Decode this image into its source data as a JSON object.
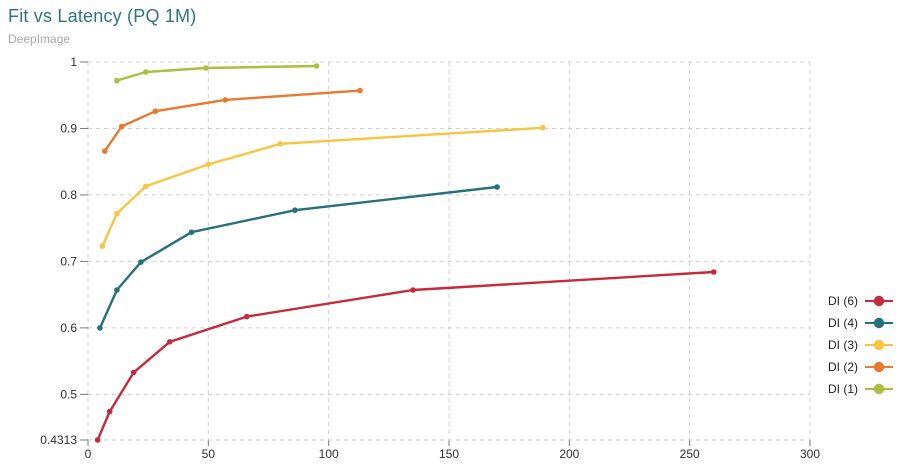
{
  "chart_data": {
    "type": "line",
    "title": "Fit vs Latency (PQ 1M)",
    "subtitle": "DeepImage",
    "xlabel": "",
    "ylabel": "",
    "xlim": [
      0,
      300
    ],
    "ylim": [
      0.4313,
      1.0
    ],
    "grid": "dashed",
    "legend_position": "right",
    "x_ticks": [
      {
        "value": 0,
        "label": "0"
      },
      {
        "value": 50,
        "label": "50"
      },
      {
        "value": 100,
        "label": "100"
      },
      {
        "value": 150,
        "label": "150"
      },
      {
        "value": 200,
        "label": "200"
      },
      {
        "value": 250,
        "label": "250"
      },
      {
        "value": 300,
        "label": "300"
      }
    ],
    "y_ticks": [
      {
        "value": 1.0,
        "label": "1"
      },
      {
        "value": 0.9,
        "label": "0.9"
      },
      {
        "value": 0.8,
        "label": "0.8"
      },
      {
        "value": 0.7,
        "label": "0.7"
      },
      {
        "value": 0.6,
        "label": "0.6"
      },
      {
        "value": 0.5,
        "label": "0.5"
      },
      {
        "value": 0.4313,
        "label": "0.4313"
      }
    ],
    "series": [
      {
        "name": "DI (6)",
        "color": "#c72a39",
        "points": [
          [
            4,
            0.4313
          ],
          [
            9,
            0.474
          ],
          [
            19,
            0.533
          ],
          [
            34,
            0.579
          ],
          [
            66,
            0.617
          ],
          [
            135,
            0.657
          ],
          [
            260,
            0.684
          ]
        ]
      },
      {
        "name": "DI (4)",
        "color": "#266f7c",
        "points": [
          [
            5,
            0.6
          ],
          [
            12,
            0.657
          ],
          [
            22,
            0.699
          ],
          [
            43,
            0.744
          ],
          [
            86,
            0.777
          ],
          [
            170,
            0.812
          ]
        ]
      },
      {
        "name": "DI (3)",
        "color": "#f9c440",
        "points": [
          [
            6,
            0.723
          ],
          [
            12,
            0.772
          ],
          [
            24,
            0.813
          ],
          [
            50,
            0.846
          ],
          [
            80,
            0.877
          ],
          [
            189,
            0.901
          ]
        ]
      },
      {
        "name": "DI (2)",
        "color": "#e8792e",
        "points": [
          [
            7,
            0.866
          ],
          [
            14,
            0.903
          ],
          [
            28,
            0.926
          ],
          [
            57,
            0.943
          ],
          [
            113,
            0.957
          ]
        ]
      },
      {
        "name": "DI (1)",
        "color": "#a9bf3e",
        "points": [
          [
            12,
            0.972
          ],
          [
            24,
            0.985
          ],
          [
            49,
            0.991
          ],
          [
            95,
            0.994
          ]
        ]
      }
    ],
    "style": {
      "gridline_color": "#cfcfcf",
      "tick_color": "#777777",
      "title_color": "#2e7386",
      "subtitle_color": "#a8a8a8"
    }
  }
}
